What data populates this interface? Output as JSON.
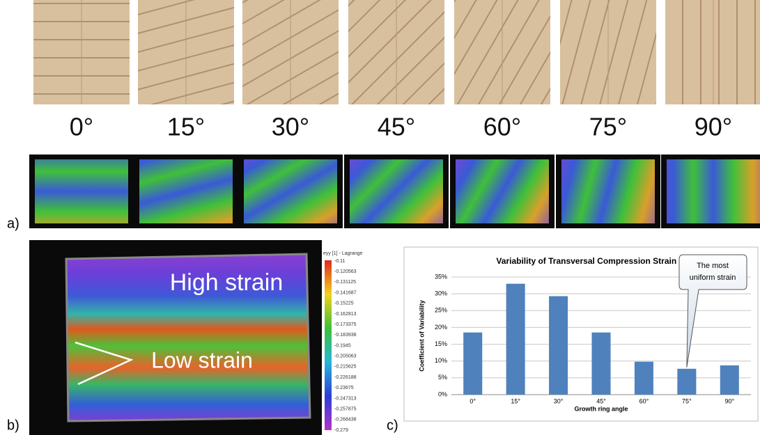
{
  "panel_labels": [
    "a)",
    "b)",
    "c)"
  ],
  "angles": [
    "0°",
    "15°",
    "30°",
    "45°",
    "60°",
    "75°",
    "90°"
  ],
  "strain_map": {
    "annotations": [
      "High strain",
      "Low strain"
    ],
    "colorbar_title": "eyy [1] - Lagrange",
    "colorbar_ticks": [
      "-0.11",
      "-0.120563",
      "-0.131125",
      "-0.141687",
      "-0.15225",
      "-0.162813",
      "-0.173375",
      "-0.183938",
      "-0.1945",
      "-0.205063",
      "-0.215625",
      "-0.226188",
      "-0.23675",
      "-0.247313",
      "-0.257875",
      "-0.268438",
      "-0.279"
    ]
  },
  "chart_data": {
    "type": "bar",
    "title": "Variability of Transversal Compression Strain εyy",
    "x_label": "Growth ring angle",
    "y_label": "Coefficient of Variability",
    "categories": [
      "0°",
      "15°",
      "30°",
      "45°",
      "60°",
      "75°",
      "90°"
    ],
    "values": [
      18.5,
      33,
      29.3,
      18.5,
      9.8,
      7.7,
      8.7
    ],
    "color": "#4f81bd",
    "ylim": [
      0,
      35
    ],
    "yticks": [
      {
        "value": 0,
        "label": "0%"
      },
      {
        "value": 5,
        "label": "5%"
      },
      {
        "value": 10,
        "label": "10%"
      },
      {
        "value": 15,
        "label": "15%"
      },
      {
        "value": 20,
        "label": "20%"
      },
      {
        "value": 25,
        "label": "25%"
      },
      {
        "value": 30,
        "label": "30%"
      },
      {
        "value": 35,
        "label": "35%"
      }
    ],
    "grid": true,
    "annotation": "The most uniform strain"
  }
}
